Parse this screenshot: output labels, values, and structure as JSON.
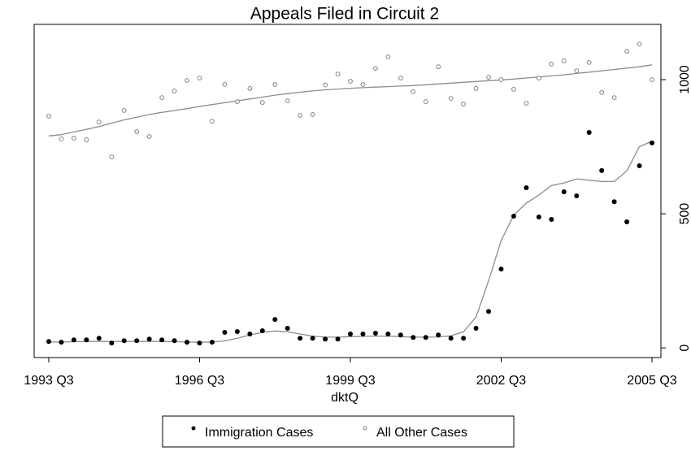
{
  "chart_data": {
    "type": "scatter",
    "title": "Appeals Filed in Circuit 2",
    "x_label": "dktQ",
    "categories": [
      "1993 Q3",
      null,
      null,
      null,
      null,
      null,
      null,
      null,
      null,
      null,
      null,
      null,
      "1996 Q3",
      null,
      null,
      null,
      null,
      null,
      null,
      null,
      null,
      null,
      null,
      null,
      "1999 Q3",
      null,
      null,
      null,
      null,
      null,
      null,
      null,
      null,
      null,
      null,
      null,
      "2002 Q3",
      null,
      null,
      null,
      null,
      null,
      null,
      null,
      null,
      null,
      null,
      null,
      "2005 Q3"
    ],
    "ylim": [
      -36,
      1206
    ],
    "yticks": [
      0,
      500,
      1000
    ],
    "y_axis_side": "right",
    "grid": false,
    "legend_position": "bottom",
    "smooth_color": "#8c8c8c",
    "series": [
      {
        "name": "Immigration Cases",
        "color": "#000000",
        "marker": "filled",
        "values": [
          24,
          21,
          30,
          30,
          36,
          18,
          27,
          27,
          33,
          30,
          27,
          21,
          18,
          21,
          58,
          61,
          52,
          64,
          106,
          73,
          36,
          36,
          33,
          33,
          52,
          52,
          55,
          52,
          48,
          39,
          39,
          48,
          36,
          36,
          73,
          136,
          294,
          491,
          597,
          488,
          479,
          582,
          567,
          803,
          661,
          545,
          470,
          679,
          764
        ],
        "smooth_values": [
          22,
          22,
          23,
          24,
          24,
          24,
          24,
          24,
          24,
          24,
          23,
          22,
          21,
          22,
          26,
          36,
          48,
          58,
          63,
          60,
          52,
          44,
          40,
          40,
          42,
          43,
          44,
          44,
          42,
          40,
          40,
          41,
          45,
          60,
          115,
          250,
          400,
          495,
          540,
          570,
          605,
          615,
          630,
          625,
          620,
          620,
          660,
          750,
          770
        ]
      },
      {
        "name": "All Other Cases",
        "color": "#808080",
        "marker": "hollow",
        "values": [
          864,
          779,
          782,
          776,
          842,
          712,
          885,
          806,
          788,
          933,
          958,
          997,
          1006,
          845,
          982,
          918,
          967,
          915,
          982,
          921,
          867,
          870,
          980,
          1021,
          994,
          982,
          1042,
          1085,
          1006,
          955,
          918,
          1048,
          930,
          909,
          967,
          1009,
          1000,
          964,
          912,
          1006,
          1058,
          1070,
          1033,
          1064,
          952,
          933,
          1106,
          1133,
          1000
        ],
        "smooth_values": [
          790,
          795,
          805,
          815,
          825,
          838,
          850,
          860,
          870,
          878,
          885,
          892,
          900,
          907,
          914,
          921,
          928,
          935,
          942,
          948,
          953,
          958,
          962,
          965,
          968,
          970,
          972,
          974,
          976,
          978,
          981,
          984,
          987,
          990,
          993,
          996,
          999,
          1002,
          1006,
          1010,
          1014,
          1018,
          1023,
          1028,
          1033,
          1038,
          1043,
          1048,
          1055
        ]
      }
    ]
  }
}
